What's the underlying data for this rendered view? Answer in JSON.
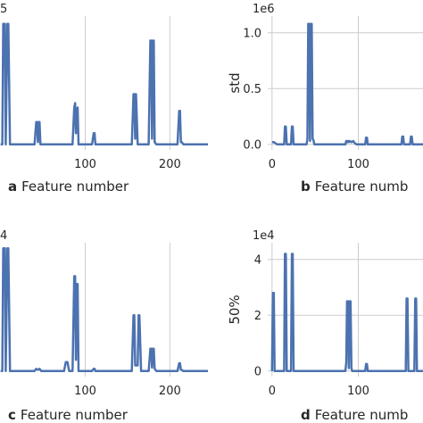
{
  "chart_data": [
    {
      "type": "line",
      "panel_letter": "a",
      "xlabel": "Feature number",
      "ylabel": "",
      "offset_text": "5",
      "x_ticks": [
        100,
        200
      ],
      "y_ticks": [],
      "xlim": [
        -5,
        245
      ],
      "ylim": [
        -0.05,
        1.15
      ],
      "series": [
        {
          "x": [
            0,
            2,
            3,
            5,
            6,
            8,
            9,
            11,
            40,
            42,
            43,
            44,
            45,
            46,
            47,
            75,
            85,
            87,
            88,
            89,
            90,
            91,
            92,
            94,
            108,
            110,
            111,
            112,
            155,
            157,
            158,
            159,
            160,
            162,
            175,
            177,
            178,
            179,
            180,
            181,
            182,
            184,
            209,
            211,
            212,
            213,
            214,
            216,
            245
          ],
          "values": [
            0,
            0,
            1.08,
            1.08,
            0,
            1.08,
            1.08,
            0,
            0,
            0.2,
            0.2,
            0.02,
            0.2,
            0.2,
            0,
            0,
            0,
            0.33,
            0.37,
            0.1,
            0.3,
            0.33,
            0,
            0,
            0,
            0.1,
            0.1,
            0,
            0,
            0.45,
            0.45,
            0.05,
            0.45,
            0,
            0,
            0.93,
            0.93,
            0.05,
            0.93,
            0.93,
            0.02,
            0,
            0,
            0.3,
            0.3,
            0.02,
            0.02,
            0,
            0
          ]
        }
      ]
    },
    {
      "type": "line",
      "panel_letter": "b",
      "xlabel": "Feature numb",
      "ylabel": "std",
      "offset_text": "1e6",
      "x_ticks": [
        0,
        100
      ],
      "y_ticks": [
        0.0,
        0.5,
        1.0
      ],
      "y_tick_labels": [
        "0.0",
        "0.5",
        "1.0"
      ],
      "xlim": [
        -5,
        175
      ],
      "ylim": [
        -0.05,
        1.15
      ],
      "series": [
        {
          "x": [
            0,
            2,
            4,
            6,
            8,
            14,
            15,
            16,
            17,
            22,
            23,
            24,
            25,
            40,
            41,
            42,
            43,
            44,
            45,
            46,
            47,
            48,
            49,
            85,
            86,
            87,
            88,
            89,
            90,
            92,
            94,
            96,
            98,
            100,
            108,
            109,
            110,
            111,
            150,
            151,
            152,
            153,
            160,
            161,
            162,
            163,
            175
          ],
          "values": [
            0.02,
            0.02,
            0.01,
            0,
            0,
            0,
            0.16,
            0.16,
            0,
            0,
            0.16,
            0.16,
            0,
            0,
            0.05,
            1.08,
            1.08,
            0.03,
            1.08,
            1.08,
            0.05,
            0.04,
            0,
            0,
            0.03,
            0.02,
            0.03,
            0.02,
            0.03,
            0.02,
            0.03,
            0.01,
            0,
            0,
            0,
            0.06,
            0.06,
            0,
            0,
            0.07,
            0.07,
            0,
            0,
            0.07,
            0.07,
            0,
            0
          ]
        }
      ]
    },
    {
      "type": "line",
      "panel_letter": "c",
      "xlabel": "Feature number",
      "ylabel": "",
      "offset_text": "4",
      "x_ticks": [
        100,
        200
      ],
      "y_ticks": [],
      "xlim": [
        -5,
        245
      ],
      "ylim": [
        -0.05,
        1.15
      ],
      "series": [
        {
          "x": [
            0,
            2,
            3,
            5,
            6,
            8,
            9,
            11,
            40,
            42,
            44,
            46,
            48,
            75,
            77,
            79,
            81,
            85,
            87,
            88,
            89,
            90,
            91,
            92,
            94,
            108,
            110,
            111,
            112,
            155,
            157,
            158,
            159,
            162,
            163,
            164,
            166,
            175,
            177,
            178,
            179,
            180,
            181,
            182,
            184,
            209,
            211,
            212,
            213,
            214,
            216,
            245
          ],
          "values": [
            0,
            0,
            1.1,
            1.1,
            0,
            1.1,
            1.1,
            0,
            0,
            0.02,
            0.01,
            0.02,
            0,
            0,
            0.08,
            0.08,
            0,
            0,
            0.85,
            0.85,
            0.1,
            0.78,
            0.78,
            0,
            0,
            0,
            0.02,
            0.02,
            0,
            0,
            0.5,
            0.5,
            0.05,
            0.05,
            0.5,
            0.5,
            0,
            0,
            0.2,
            0.2,
            0.03,
            0.2,
            0.2,
            0.02,
            0,
            0,
            0.07,
            0.07,
            0.01,
            0.01,
            0,
            0
          ]
        }
      ]
    },
    {
      "type": "line",
      "panel_letter": "d",
      "xlabel": "Feature numb",
      "ylabel": "50%",
      "offset_text": "1e4",
      "x_ticks": [
        0,
        100
      ],
      "y_ticks": [
        0,
        2,
        4
      ],
      "y_tick_labels": [
        "0",
        "2",
        "4"
      ],
      "xlim": [
        -5,
        175
      ],
      "ylim": [
        -0.2,
        4.6
      ],
      "series": [
        {
          "x": [
            0,
            1,
            2,
            3,
            14,
            15,
            16,
            17,
            22,
            23,
            24,
            25,
            85,
            86,
            87,
            88,
            89,
            90,
            91,
            92,
            93,
            108,
            109,
            110,
            111,
            155,
            156,
            157,
            158,
            159,
            160,
            165,
            166,
            167,
            168,
            175
          ],
          "values": [
            0,
            2.8,
            2.8,
            0,
            0,
            4.2,
            4.2,
            0,
            0,
            4.2,
            4.2,
            0,
            0,
            0.3,
            2.5,
            2.5,
            0.1,
            2.5,
            2.5,
            0.1,
            0,
            0,
            0.25,
            0.25,
            0,
            0,
            2.6,
            2.6,
            0,
            0,
            0,
            0,
            2.6,
            2.6,
            0,
            0
          ]
        }
      ]
    }
  ]
}
